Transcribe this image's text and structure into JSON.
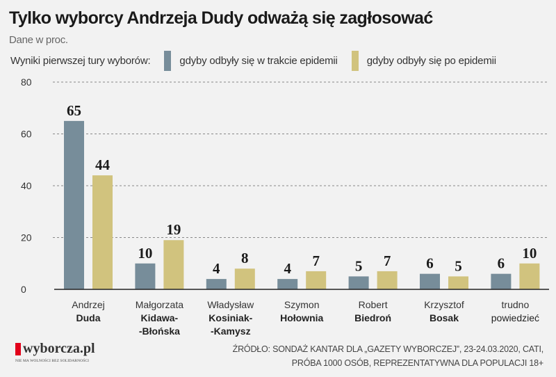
{
  "title": "Tylko wyborcy Andrzeja Dudy odważą się zagłosować",
  "subtitle": "Dane w proc.",
  "legend": {
    "label": "Wyniki pierwszej tury wyborów:",
    "items": [
      "gdyby odbyły się w trakcie epidemii",
      "gdyby odbyły się po epidemii"
    ]
  },
  "chart_data": {
    "type": "bar",
    "title": "Tylko wyborcy Andrzeja Dudy odważą się zagłosować",
    "ylabel": "Dane w proc.",
    "ylim": [
      0,
      80
    ],
    "yticks": [
      0,
      20,
      40,
      60,
      80
    ],
    "grid": true,
    "legend_position": "top",
    "categories": [
      {
        "first": "Andrzej",
        "last": [
          "Duda"
        ]
      },
      {
        "first": "Małgorzata",
        "last": [
          "Kidawa-",
          "-Błońska"
        ]
      },
      {
        "first": "Władysław",
        "last": [
          "Kosiniak-",
          "-Kamysz"
        ]
      },
      {
        "first": "Szymon",
        "last": [
          "Hołownia"
        ]
      },
      {
        "first": "Robert",
        "last": [
          "Biedroń"
        ]
      },
      {
        "first": "Krzysztof",
        "last": [
          "Bosak"
        ]
      },
      {
        "first": "trudno",
        "last": [
          "powiedzieć"
        ],
        "plain": true
      }
    ],
    "series": [
      {
        "name": "gdyby odbyły się w trakcie epidemii",
        "color": "#778d9a",
        "values": [
          65,
          10,
          4,
          4,
          5,
          6,
          6
        ]
      },
      {
        "name": "gdyby odbyły się po epidemii",
        "color": "#d1c37e",
        "values": [
          44,
          19,
          8,
          7,
          7,
          5,
          10
        ]
      }
    ]
  },
  "footer": {
    "logo": "wyborcza.pl",
    "logo_tagline": "NIE MA WOLNOŚCI BEZ SOLIDARNOŚCI",
    "source_line1": "ŹRÓDŁO: SONDAŻ KANTAR DLA „GAZETY WYBORCZEJ”, 23-24.03.2020, CATI,",
    "source_line2": "PRÓBA 1000 OSÓB, REPREZENTATYWNA DLA POPULACJI 18+"
  }
}
